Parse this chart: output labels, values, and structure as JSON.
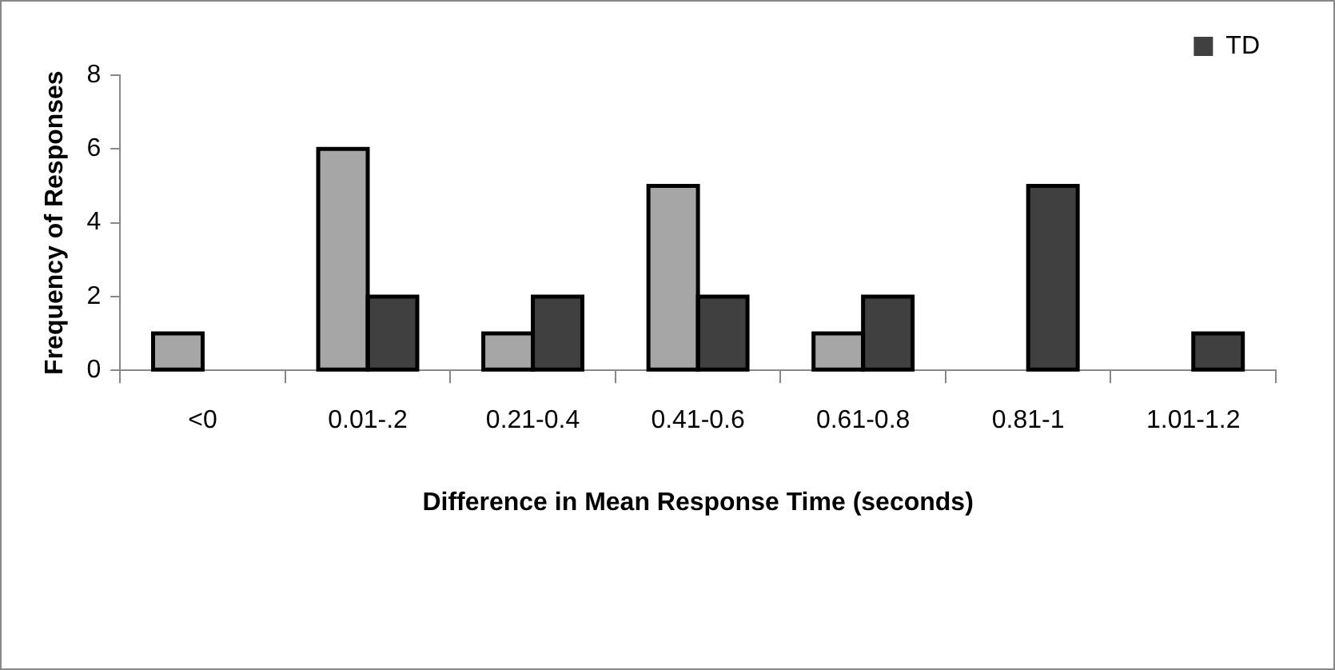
{
  "chart_data": {
    "type": "bar",
    "xlabel": "Difference in Mean Response Time (seconds)",
    "ylabel": "Frequency of Responses",
    "categories": [
      "<0",
      "0.01-.2",
      "0.21-0.4",
      "0.41-0.6",
      "0.61-0.8",
      "0.81-1",
      "1.01-1.2"
    ],
    "series": [
      {
        "color": "#a6a6a6",
        "values": [
          1,
          6,
          1,
          5,
          1,
          0,
          0
        ]
      },
      {
        "name": "TD",
        "color": "#404040",
        "values": [
          0,
          2,
          2,
          2,
          2,
          5,
          1
        ]
      }
    ],
    "ylim": [
      0,
      8
    ],
    "yticks": [
      0,
      2,
      4,
      6,
      8
    ],
    "grid": false,
    "legend": "top right"
  }
}
